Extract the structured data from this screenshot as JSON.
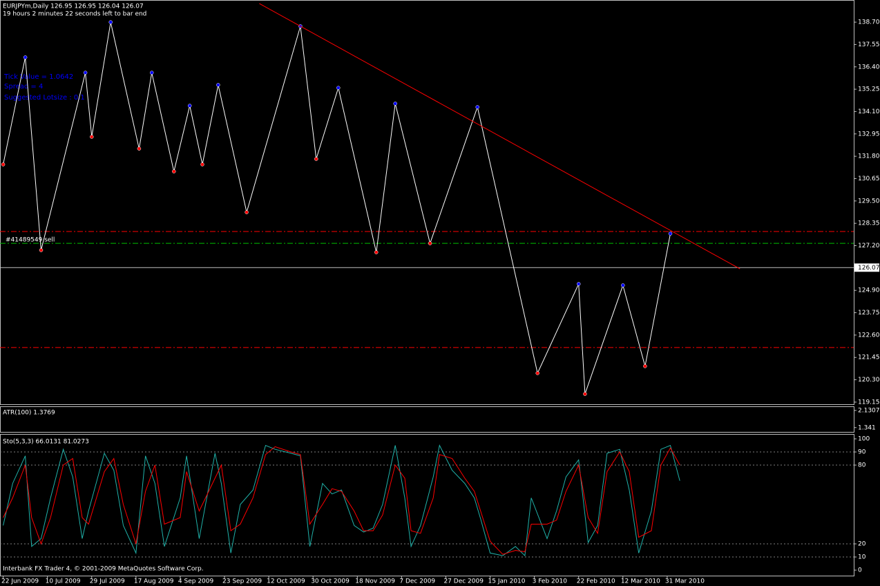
{
  "chart_data": [
    {
      "type": "line",
      "title": "EURJPYm,Daily  126.95 126.95 126.04 126.07",
      "subtitle": "19 hours 2 minutes 22 seconds left to bar end",
      "annotations": [
        "Tick Value = 1.0642",
        "Spread = 4",
        "Suggested Lotsize : 0.1",
        "#41489549 sell"
      ],
      "xlim": [
        -1,
        269
      ],
      "ylim": [
        119.04,
        139.84
      ],
      "yticks": [
        {
          "value": 138.7,
          "label": "138.70"
        },
        137.55,
        {
          "value": 136.4,
          "label": "136.40"
        },
        135.25,
        {
          "value": 134.1,
          "label": "134.10"
        },
        132.95,
        {
          "value": 131.8,
          "label": "131.80"
        },
        130.65,
        {
          "value": 129.5,
          "label": "129.50"
        },
        128.35,
        {
          "value": 127.2,
          "label": "127.20"
        },
        {
          "value": 124.9,
          "label": "124.90"
        },
        123.75,
        {
          "value": 122.6,
          "label": "122.60"
        },
        121.45,
        {
          "value": 120.3,
          "label": "120.30"
        },
        119.15
      ],
      "series": [
        {
          "color": "#ffffff",
          "markers": true,
          "x": [
            0,
            7,
            12,
            26,
            28,
            34,
            43,
            47,
            54,
            59,
            63,
            68,
            77,
            94,
            99,
            106,
            118,
            124,
            135,
            150,
            169,
            182,
            184,
            196,
            203,
            211
          ],
          "values": [
            131.38,
            136.89,
            126.97,
            136.1,
            132.8,
            138.7,
            132.19,
            136.1,
            131.02,
            134.4,
            131.38,
            135.47,
            128.92,
            138.49,
            131.66,
            135.32,
            126.86,
            134.51,
            127.32,
            134.33,
            120.64,
            125.23,
            119.57,
            125.16,
            121.0,
            127.82
          ]
        },
        {
          "color": "#ff0000",
          "markers": false,
          "x": [
            81,
            233
          ],
          "values": [
            139.66,
            126.01
          ]
        }
      ],
      "hlines": [
        {
          "value": 127.93,
          "color": "#ff0000"
        },
        {
          "value": 127.32,
          "color": "#00c000"
        },
        {
          "value": 121.96,
          "color": "#ff0000"
        }
      ],
      "last_price": 126.07
    },
    {
      "type": "line",
      "title": "ATR(100) 1.3769",
      "ylim": [
        1.143,
        2.32
      ],
      "yticks": [
        2.1307,
        1.341
      ]
    },
    {
      "type": "line",
      "title": "Sto(5,3,3) 66.0131 81.0273",
      "footer": "Interbank FX Trader 4, © 2001-2009 MetaQuotes Software Corp.",
      "xlim": [
        -1,
        269
      ],
      "ylim": [
        -4.2,
        103.7
      ],
      "yticks": [
        0,
        10,
        20,
        80,
        90,
        100
      ],
      "levels": [
        10,
        20,
        80,
        90
      ],
      "xticks": [
        {
          "value": 0,
          "label": "22 Jun 2009"
        },
        {
          "value": 14,
          "label": "10 Jul 2009"
        },
        {
          "value": 28,
          "label": "29 Jul 2009"
        },
        {
          "value": 42,
          "label": "17 Aug 2009"
        },
        {
          "value": 56,
          "label": "4 Sep 2009"
        },
        {
          "value": 70,
          "label": "23 Sep 2009"
        },
        {
          "value": 84,
          "label": "12 Oct 2009"
        },
        {
          "value": 98,
          "label": "30 Oct 2009"
        },
        {
          "value": 112,
          "label": "18 Nov 2009"
        },
        {
          "value": 126,
          "label": "7 Dec 2009"
        },
        {
          "value": 140,
          "label": "27 Dec 2009"
        },
        {
          "value": 154,
          "label": "15 Jan 2010"
        },
        {
          "value": 168,
          "label": "3 Feb 2010"
        },
        {
          "value": 182,
          "label": "22 Feb 2010"
        },
        {
          "value": 196,
          "label": "12 Mar 2010"
        },
        {
          "value": 210,
          "label": "31 Mar 2010"
        }
      ],
      "series": [
        {
          "color": "#20b2aa",
          "x": [
            0,
            3,
            7,
            9,
            12,
            15,
            19,
            22,
            25,
            27,
            32,
            35,
            38,
            42,
            45,
            48,
            51,
            56,
            58,
            62,
            67,
            69,
            72,
            75,
            79,
            83,
            86,
            91,
            94,
            97,
            101,
            104,
            107,
            111,
            114,
            117,
            120,
            124,
            127,
            129,
            132,
            136,
            138,
            142,
            146,
            149,
            151,
            154,
            158,
            162,
            165,
            167,
            172,
            175,
            178,
            182,
            185,
            188,
            191,
            195,
            198,
            201,
            205,
            208,
            211,
            214
          ],
          "values": [
            34,
            66,
            87,
            18,
            24,
            55,
            92,
            71,
            24,
            45,
            89,
            76,
            34,
            13,
            87,
            66,
            18,
            55,
            87,
            24,
            89,
            66,
            13,
            50,
            61,
            95,
            92,
            89,
            87,
            18,
            66,
            58,
            61,
            34,
            29,
            32,
            50,
            95,
            55,
            18,
            34,
            71,
            95,
            76,
            66,
            55,
            39,
            13,
            11,
            18,
            11,
            55,
            24,
            45,
            71,
            84,
            21,
            34,
            89,
            92,
            61,
            13,
            45,
            92,
            95,
            68
          ]
        },
        {
          "color": "#ff0000",
          "x": [
            0,
            3,
            7,
            9,
            12,
            15,
            19,
            22,
            25,
            27,
            32,
            35,
            38,
            42,
            45,
            48,
            51,
            56,
            58,
            62,
            67,
            69,
            72,
            75,
            79,
            83,
            86,
            91,
            94,
            97,
            101,
            104,
            107,
            111,
            114,
            117,
            120,
            124,
            127,
            129,
            132,
            136,
            138,
            142,
            146,
            149,
            151,
            154,
            158,
            162,
            165,
            167,
            172,
            175,
            178,
            182,
            185,
            188,
            191,
            195,
            198,
            201,
            205,
            208,
            211,
            214
          ],
          "values": [
            40,
            55,
            80,
            40,
            20,
            40,
            80,
            85,
            40,
            35,
            75,
            85,
            50,
            20,
            60,
            80,
            35,
            40,
            75,
            45,
            70,
            80,
            30,
            35,
            55,
            88,
            94,
            90,
            88,
            35,
            50,
            62,
            60,
            45,
            30,
            30,
            42,
            80,
            70,
            30,
            28,
            55,
            88,
            85,
            70,
            60,
            45,
            22,
            12,
            15,
            14,
            35,
            35,
            38,
            60,
            80,
            40,
            28,
            75,
            90,
            75,
            25,
            30,
            80,
            93,
            80
          ]
        }
      ]
    }
  ]
}
